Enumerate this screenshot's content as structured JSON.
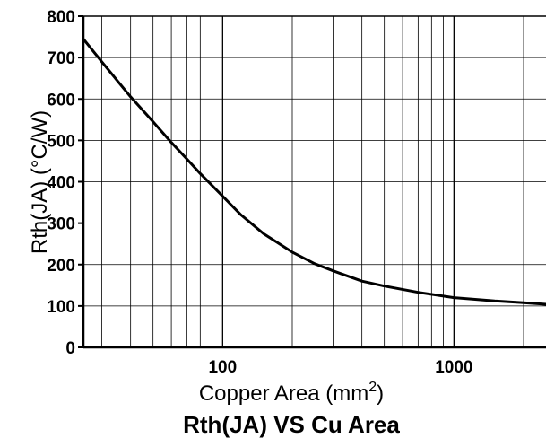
{
  "chart_data": {
    "type": "line",
    "title": "Rth(JA) VS Cu Area",
    "xlabel": "Copper Area (mm",
    "xlabel_superscript": "2",
    "xlabel_suffix": ")",
    "ylabel": "Rth(JA) (°C/W)",
    "x_scale": "log",
    "xlim": [
      25,
      2500
    ],
    "ylim": [
      0,
      800
    ],
    "x_tick_labels": [
      "100",
      "1000"
    ],
    "x_ticks": [
      100,
      1000
    ],
    "y_tick_labels": [
      "0",
      "100",
      "200",
      "300",
      "400",
      "500",
      "600",
      "700",
      "800"
    ],
    "y_ticks": [
      0,
      100,
      200,
      300,
      400,
      500,
      600,
      700,
      800
    ],
    "grid": true,
    "line_color": "#000000",
    "series": [
      {
        "x": [
          25,
          30,
          40,
          50,
          60,
          70,
          80,
          100,
          120,
          150,
          200,
          250,
          300,
          400,
          500,
          700,
          1000,
          1500,
          2000,
          2500
        ],
        "y": [
          745,
          690,
          605,
          545,
          495,
          455,
          420,
          365,
          320,
          275,
          230,
          202,
          185,
          160,
          148,
          133,
          120,
          112,
          108,
          104
        ]
      }
    ]
  }
}
